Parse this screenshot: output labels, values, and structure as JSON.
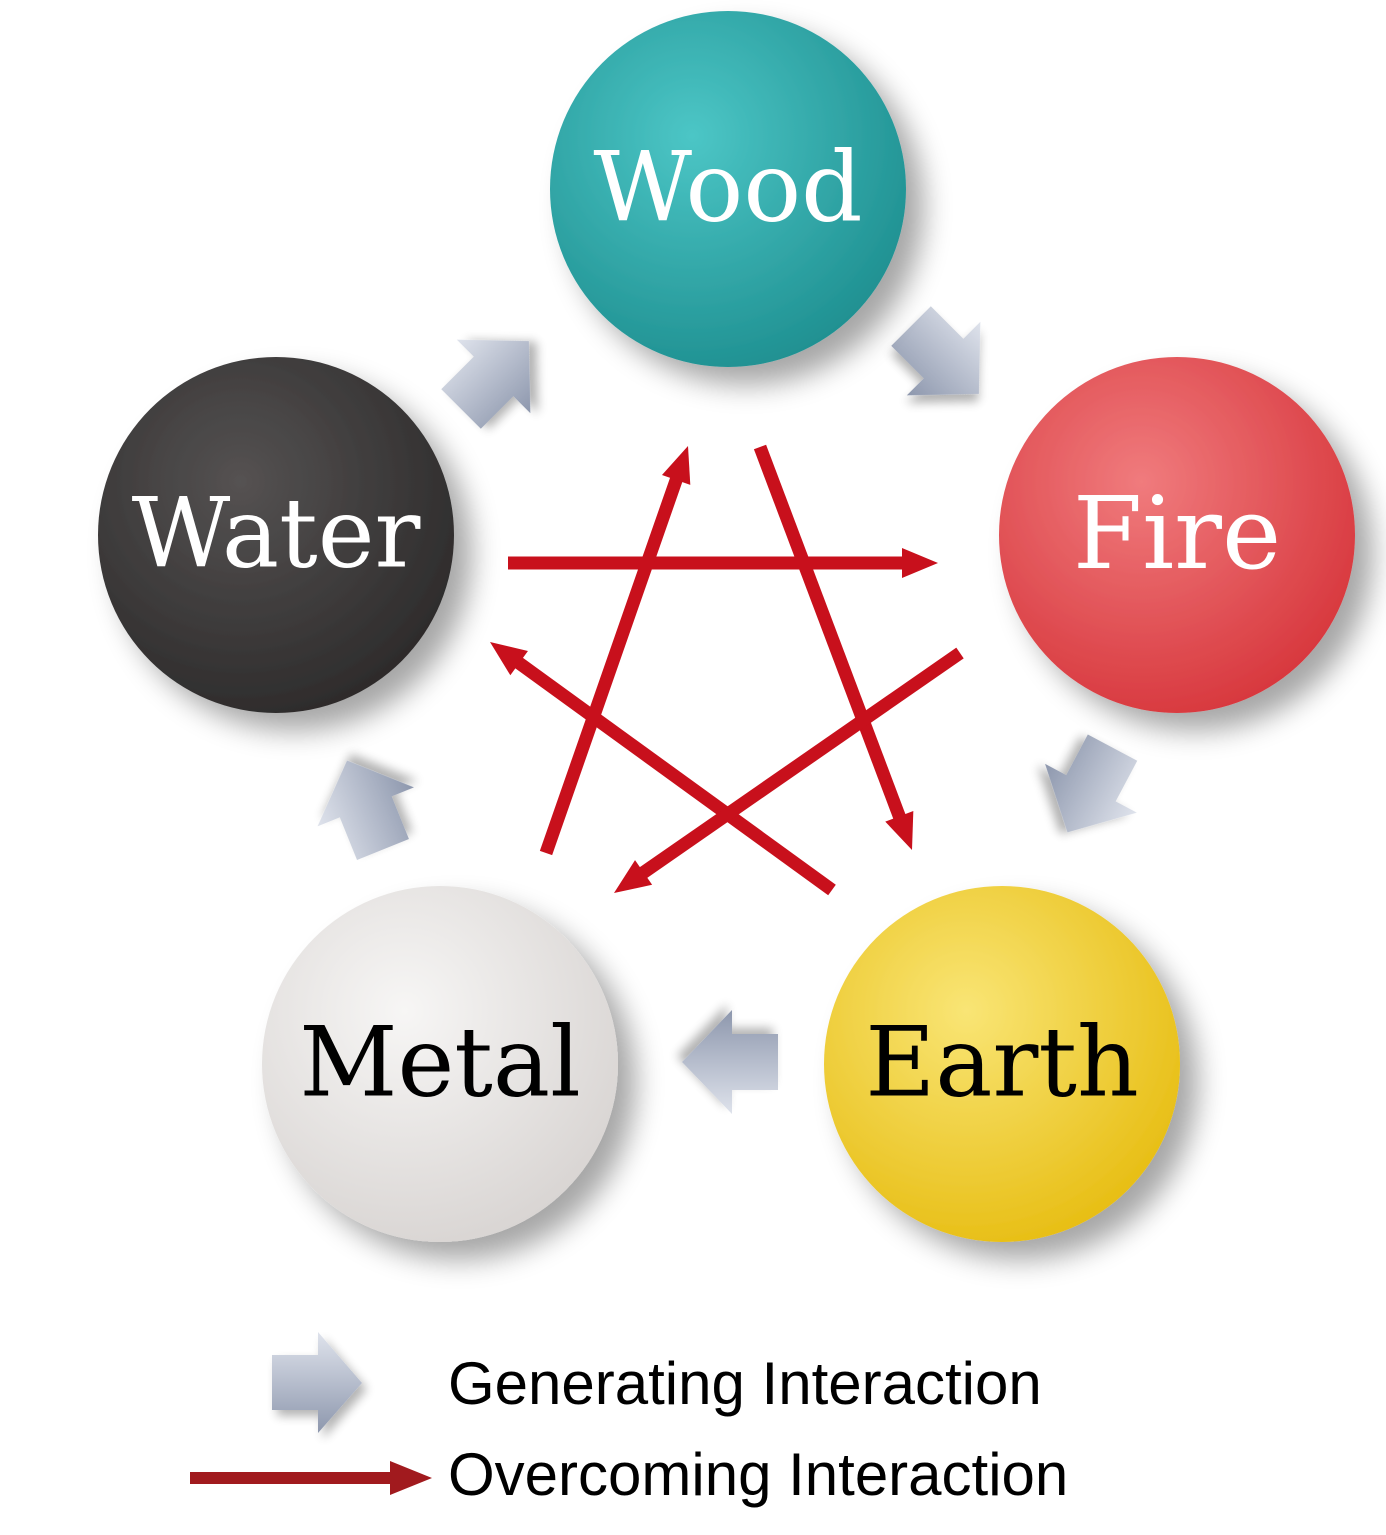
{
  "elements": [
    {
      "id": "wood",
      "label": "Wood",
      "color": "#2aa3a3",
      "text_color": "#ffffff"
    },
    {
      "id": "fire",
      "label": "Fire",
      "color": "#e0484d",
      "text_color": "#ffffff"
    },
    {
      "id": "earth",
      "label": "Earth",
      "color": "#f2d12a",
      "text_color": "#000000"
    },
    {
      "id": "metal",
      "label": "Metal",
      "color": "#ebe8e6",
      "text_color": "#000000"
    },
    {
      "id": "water",
      "label": "Water",
      "color": "#3a3838",
      "text_color": "#ffffff"
    }
  ],
  "generating_cycle": [
    {
      "from": "wood",
      "to": "fire"
    },
    {
      "from": "fire",
      "to": "earth"
    },
    {
      "from": "earth",
      "to": "metal"
    },
    {
      "from": "metal",
      "to": "water"
    },
    {
      "from": "water",
      "to": "wood"
    }
  ],
  "overcoming_cycle": [
    {
      "from": "wood",
      "to": "earth"
    },
    {
      "from": "earth",
      "to": "water"
    },
    {
      "from": "water",
      "to": "fire"
    },
    {
      "from": "fire",
      "to": "metal"
    },
    {
      "from": "metal",
      "to": "wood"
    }
  ],
  "legend": {
    "generating_label": "Generating Interaction",
    "overcoming_label": "Overcoming Interaction"
  },
  "colors": {
    "generating_arrow": "#a7b0c4",
    "overcoming_arrow": "#c8101c"
  }
}
